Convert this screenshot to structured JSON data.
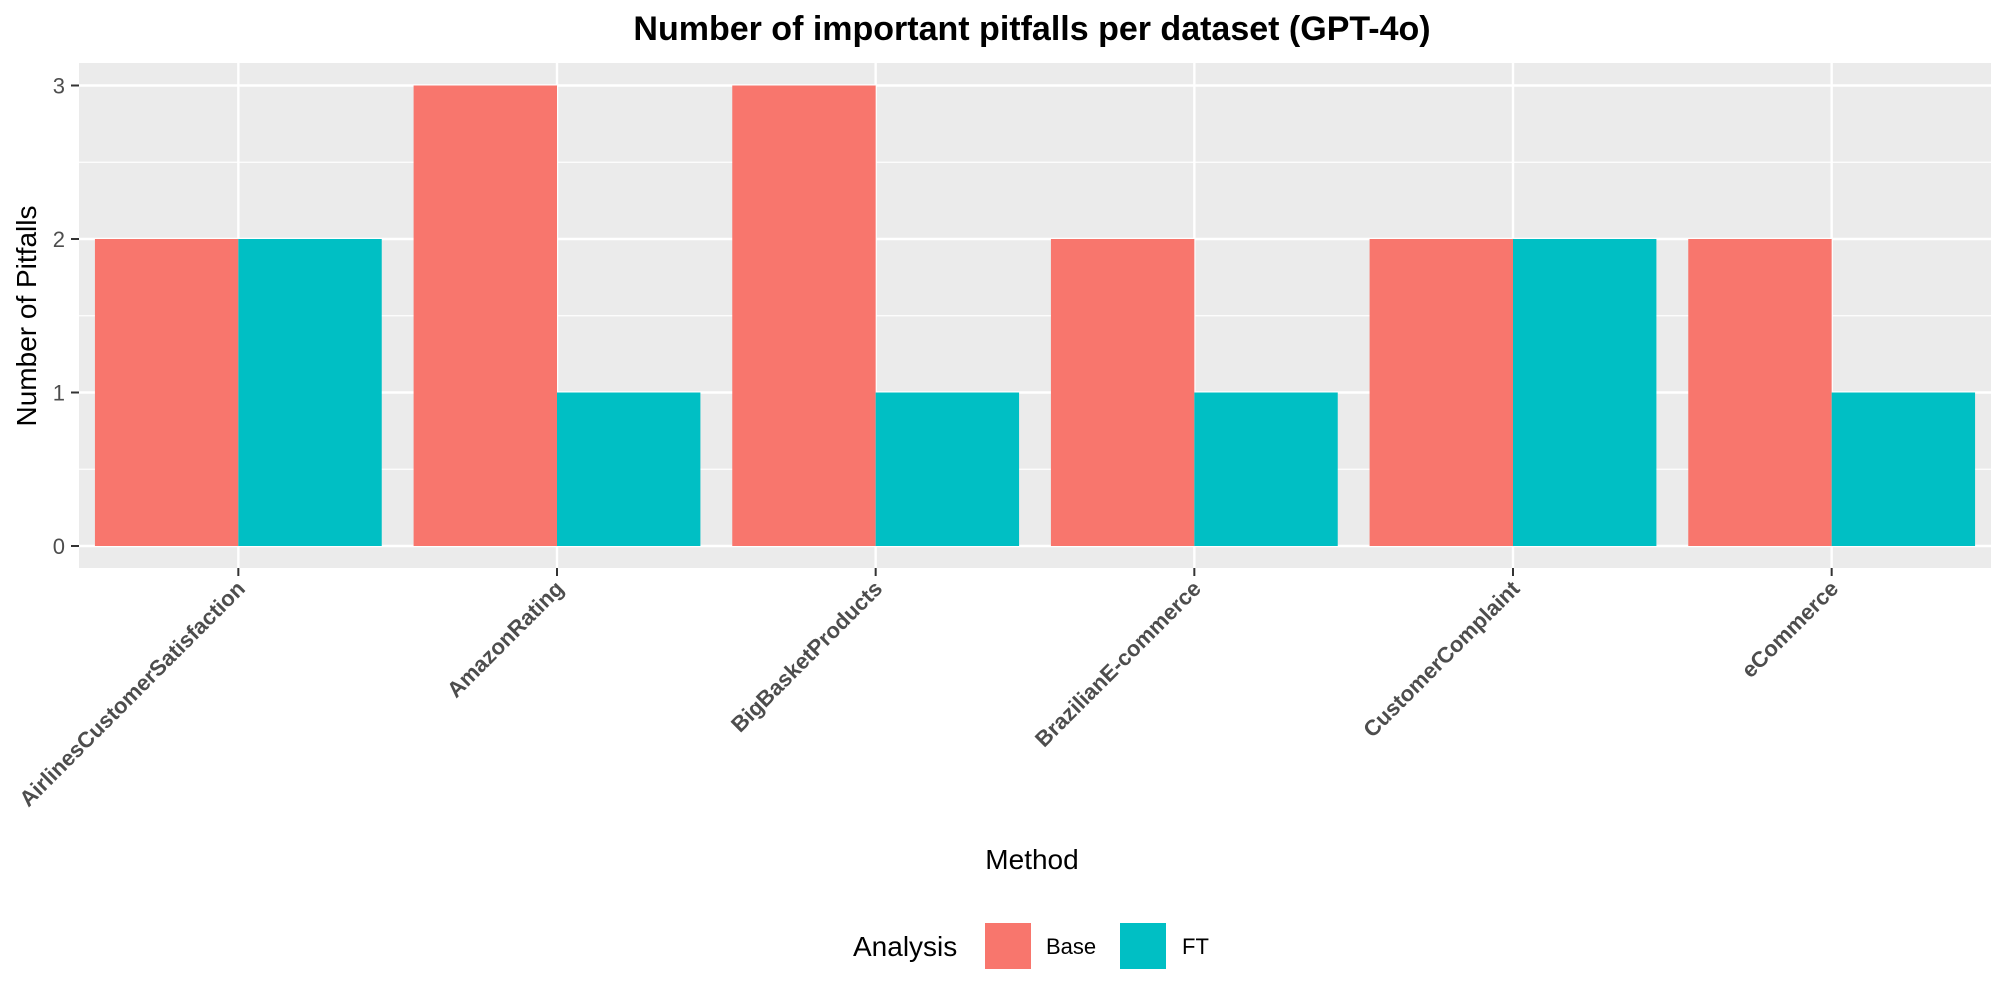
{
  "chart_data": {
    "type": "bar",
    "title": "Number of important pitfalls per dataset (GPT-4o)",
    "xlabel": "Method",
    "ylabel": "Number of Pitfalls",
    "categories": [
      "AirlinesCustomerSatisfaction",
      "AmazonRating",
      "BigBasketProducts",
      "BrazilianE-commerce",
      "CustomerComplaint",
      "eCommerce"
    ],
    "series": [
      {
        "name": "Base",
        "color": "#F8766D",
        "values": [
          2,
          3,
          3,
          2,
          2,
          2
        ]
      },
      {
        "name": "FT",
        "color": "#00BFC4",
        "values": [
          2,
          1,
          1,
          1,
          2,
          1
        ]
      }
    ],
    "ylim": [
      0,
      3.15
    ],
    "yticks": [
      "0",
      "1",
      "2",
      "3"
    ],
    "grid": true,
    "legend": {
      "title": "Analysis",
      "position": "bottom"
    },
    "panel_color": "#EBEBEB",
    "grid_color": "#FFFFFF"
  }
}
